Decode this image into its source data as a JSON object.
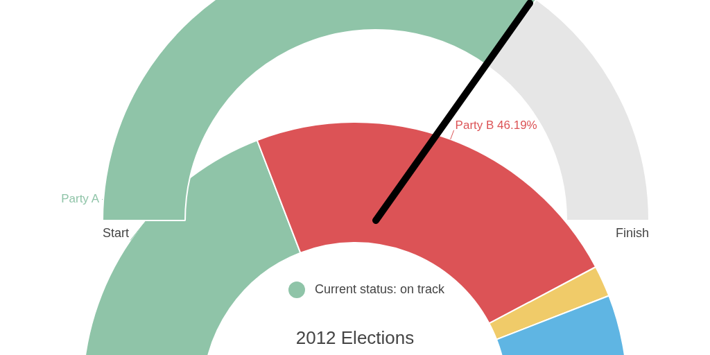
{
  "chart_data": [
    {
      "type": "donut",
      "categories": [
        "Current status: on track",
        null
      ],
      "values": [
        70,
        30
      ],
      "colors": [
        "#8fc4a8",
        "#e6e6e6"
      ],
      "needle": "Current status: on track",
      "legend": "bottom",
      "annotations": [
        "Start",
        "Finish"
      ]
    },
    {
      "type": "donut",
      "title": "2012 Elections",
      "categories": [
        "Party A",
        "Party B",
        null,
        null
      ],
      "values": [
        38.3,
        46.19,
        3.7,
        11.81
      ],
      "colors": [
        "#8fc4a8",
        "#dc5356",
        "#f0cb69",
        "#5fb5e3"
      ],
      "value_labels": [
        null,
        "46.19%",
        null,
        null
      ]
    }
  ]
}
